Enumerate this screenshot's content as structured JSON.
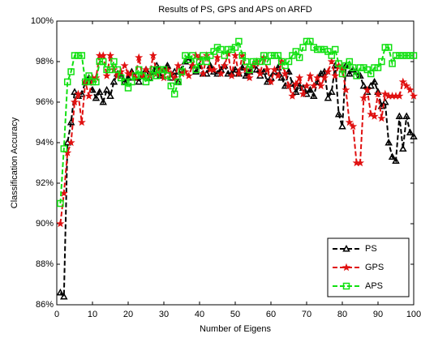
{
  "chart_data": {
    "type": "line",
    "title": "Results of PS, GPS and APS on ARFD",
    "x_label": "Number of Eigens",
    "y_label": "Classification Accuracy",
    "x": [
      1,
      2,
      3,
      4,
      5,
      6,
      7,
      8,
      9,
      10,
      11,
      12,
      13,
      14,
      15,
      16,
      17,
      18,
      19,
      20,
      21,
      22,
      23,
      24,
      25,
      26,
      27,
      28,
      29,
      30,
      31,
      32,
      33,
      34,
      35,
      36,
      37,
      38,
      39,
      40,
      41,
      42,
      43,
      44,
      45,
      46,
      47,
      48,
      49,
      50,
      51,
      52,
      53,
      54,
      55,
      56,
      57,
      58,
      59,
      60,
      61,
      62,
      63,
      64,
      65,
      66,
      67,
      68,
      69,
      70,
      71,
      72,
      73,
      74,
      75,
      76,
      77,
      78,
      79,
      80,
      81,
      82,
      83,
      84,
      85,
      86,
      87,
      88,
      89,
      90,
      91,
      92,
      93,
      94,
      95,
      96,
      97,
      98,
      99,
      100
    ],
    "series": [
      {
        "name": "PS",
        "color": "#000000",
        "marker": "triangle",
        "values": [
          86.6,
          86.4,
          94,
          95,
          96.5,
          96.3,
          96.4,
          97,
          97.2,
          96.6,
          96.2,
          96.5,
          96,
          96.6,
          96.3,
          97,
          97.4,
          97.3,
          97,
          97.2,
          97.5,
          97.2,
          97,
          97.3,
          97.6,
          97.2,
          97.5,
          97.8,
          97.3,
          97.6,
          97.8,
          97.2,
          97.5,
          97,
          97.6,
          98,
          98.2,
          97.8,
          97.5,
          97.8,
          97.4,
          97.4,
          97.8,
          97.5,
          97.4,
          97.6,
          97.8,
          97.4,
          97.4,
          97.6,
          97.4,
          97.7,
          97.3,
          97.5,
          97.8,
          97.6,
          97.3,
          97.5,
          97,
          97.2,
          97.5,
          97.7,
          97.2,
          96.8,
          97.5,
          96.9,
          96.5,
          96.8,
          96.7,
          96.4,
          96.6,
          96.3,
          97,
          97.4,
          97.5,
          96.2,
          96.5,
          97.8,
          95.4,
          94.8,
          97.8,
          97.4,
          97.6,
          97.5,
          97.3,
          96.8,
          96.5,
          96.8,
          97,
          96.5,
          95.8,
          96,
          94,
          93.3,
          93.1,
          95.3,
          93.7,
          95.3,
          94.5,
          94.3
        ]
      },
      {
        "name": "GPS",
        "color": "#e01010",
        "marker": "star",
        "values": [
          90,
          91.5,
          93.5,
          94,
          96,
          96.4,
          95,
          97,
          96.3,
          97.2,
          97.2,
          98.3,
          98.3,
          97.3,
          98.3,
          97.6,
          97.3,
          97.5,
          97.8,
          97.4,
          97.4,
          97.2,
          98.2,
          97.3,
          97.6,
          97.3,
          98.3,
          97.4,
          97.6,
          97.2,
          97.6,
          97.4,
          97.2,
          97.8,
          97.4,
          97.5,
          97.3,
          97.8,
          98.3,
          98.2,
          97.4,
          98.3,
          97.6,
          97.6,
          98.2,
          97.4,
          97.8,
          98.4,
          97.3,
          98.3,
          97.4,
          98.3,
          97.6,
          97.2,
          97.8,
          98,
          97.4,
          98.2,
          97.6,
          97,
          97.6,
          97.3,
          98,
          97.4,
          96.8,
          96.3,
          96.9,
          97.2,
          96.4,
          96.8,
          97.3,
          96.8,
          97.2,
          96.8,
          97.2,
          97.5,
          98,
          97.3,
          97.8,
          97.6,
          96.6,
          95,
          94.8,
          93,
          93,
          96.2,
          96.6,
          95.4,
          95.3,
          96.4,
          95.2,
          96.4,
          96.3,
          96.3,
          96.3,
          96.3,
          97,
          96.8,
          96.6,
          96.3
        ]
      },
      {
        "name": "APS",
        "color": "#10e010",
        "marker": "square",
        "values": [
          91,
          93.7,
          97,
          97.5,
          98.3,
          98.3,
          98.3,
          97,
          97.3,
          97,
          97,
          98,
          98,
          97.6,
          97.6,
          98,
          97.6,
          97.2,
          97,
          96.7,
          97,
          97.3,
          97.6,
          97.3,
          97,
          97.2,
          97.6,
          97.3,
          97.6,
          97.6,
          97.3,
          96.8,
          96.4,
          97,
          97.5,
          98.3,
          98.1,
          98.3,
          97.6,
          98,
          98.3,
          98,
          98.3,
          98.5,
          98.7,
          98.6,
          98.3,
          98.6,
          98.6,
          98.7,
          99,
          98.3,
          98,
          97.6,
          98,
          98,
          98,
          98.3,
          98,
          98.3,
          98.3,
          98.3,
          98,
          97.8,
          98,
          98.3,
          98.5,
          98.2,
          98.7,
          99,
          99,
          98.7,
          98.6,
          98.6,
          98.6,
          98.5,
          98.3,
          98.6,
          97.9,
          97.4,
          97.8,
          98,
          97.7,
          97.3,
          97.7,
          97.7,
          97.6,
          97.4,
          97.7,
          97.7,
          98,
          98.7,
          98.7,
          97.9,
          98.3,
          98.3,
          98.3,
          98.3,
          98.3,
          98.3
        ]
      }
    ],
    "xlim": [
      0,
      100
    ],
    "xticks": [
      0,
      10,
      20,
      30,
      40,
      50,
      60,
      70,
      80,
      90,
      100
    ],
    "ylim": [
      86,
      100
    ],
    "yticks": [
      {
        "value": 86,
        "label": "86%"
      },
      {
        "value": 88,
        "label": "88%"
      },
      {
        "value": 90,
        "label": "90%"
      },
      {
        "value": 92,
        "label": "92%"
      },
      {
        "value": 94,
        "label": "94%"
      },
      {
        "value": 96,
        "label": "96%"
      },
      {
        "value": 98,
        "label": "98%"
      },
      {
        "value": 100,
        "label": "100%"
      }
    ],
    "legend": "lower right"
  }
}
